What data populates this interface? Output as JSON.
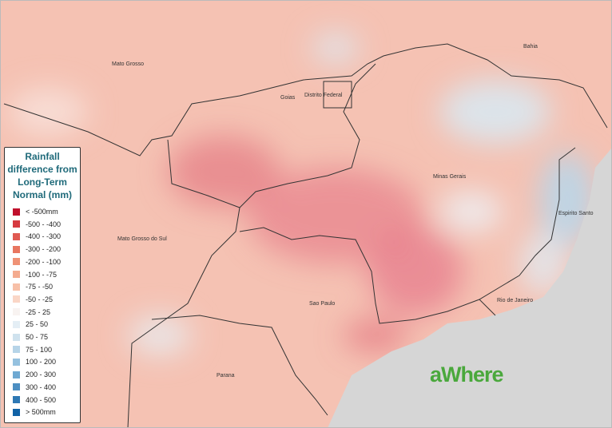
{
  "title": "Rainfall difference from Long-Term Normal (mm)",
  "regions": [
    "Mato Grosso",
    "Goias",
    "Distrito Federal",
    "Bahia",
    "Minas Gerais",
    "Espirito Santo",
    "Mato Grosso do Sul",
    "Sao Paulo",
    "Rio de Janeiro",
    "Parana"
  ],
  "legend": [
    {
      "label": "< -500mm",
      "color": "#c0102c"
    },
    {
      "label": "-500 - -400",
      "color": "#d63a40"
    },
    {
      "label": "-400 - -300",
      "color": "#e05a52"
    },
    {
      "label": "-300 - -200",
      "color": "#e87660"
    },
    {
      "label": "-200 - -100",
      "color": "#ef9276"
    },
    {
      "label": "-100 - -75",
      "color": "#f4ab8f"
    },
    {
      "label": "-75 - -50",
      "color": "#f7c0a8"
    },
    {
      "label": "-50 - -25",
      "color": "#fad6c6"
    },
    {
      "label": "-25 - 25",
      "color": "#f8f3f1"
    },
    {
      "label": "25 - 50",
      "color": "#e4eef5"
    },
    {
      "label": "50 - 75",
      "color": "#cfe2ee"
    },
    {
      "label": "75 - 100",
      "color": "#b6d4e8"
    },
    {
      "label": "100 - 200",
      "color": "#95c1df"
    },
    {
      "label": "200 - 300",
      "color": "#6fa9d2"
    },
    {
      "label": "300 - 400",
      "color": "#4d8fc2"
    },
    {
      "label": "400 - 500",
      "color": "#2e78b4"
    },
    {
      "label": "> 500mm",
      "color": "#1162a6"
    }
  ],
  "logo": "aWhere"
}
